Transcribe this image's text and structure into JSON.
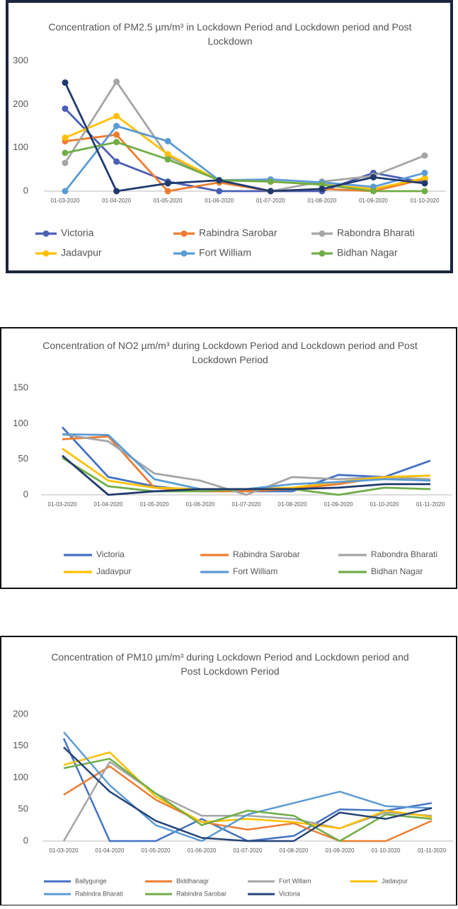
{
  "chart_data": [
    {
      "type": "line",
      "title": "Concentration of PM2.5 µm/m³  in Lockdown Period and Lockdown period and Post Lockdown",
      "categories": [
        "01-03-2020",
        "01-04-2020",
        "01-05-2020",
        "01-06-2020",
        "01-07-2020",
        "01-08-2020",
        "01-09-2020",
        "01-10-2020"
      ],
      "ylim": [
        0,
        300
      ],
      "yticks": [
        0,
        100,
        200,
        300
      ],
      "markers": true,
      "grid": false,
      "series": [
        {
          "name": "Victoria",
          "color": "#4a5fb5",
          "values": [
            190,
            68,
            22,
            0,
            0,
            0,
            42,
            20
          ]
        },
        {
          "name": "Rabindra Sarobar",
          "color": "#ed7d31",
          "values": [
            115,
            130,
            0,
            20,
            0,
            5,
            0,
            28
          ]
        },
        {
          "name": "Rabondra Bharati",
          "color": "#a5a5a5",
          "values": [
            65,
            252,
            80,
            25,
            0,
            22,
            35,
            82
          ]
        },
        {
          "name": "Jadavpur",
          "color": "#ffc000",
          "values": [
            123,
            173,
            85,
            25,
            22,
            15,
            5,
            30
          ]
        },
        {
          "name": "Fort William",
          "color": "#5b9bd5",
          "values": [
            0,
            150,
            115,
            25,
            27,
            20,
            10,
            42
          ]
        },
        {
          "name": "Bidhan Nagar",
          "color": "#70ad47",
          "values": [
            88,
            113,
            73,
            25,
            22,
            15,
            0,
            0
          ]
        },
        {
          "color": "#1f3a6e",
          "values": [
            250,
            0,
            18,
            25,
            0,
            5,
            32,
            18
          ]
        }
      ]
    },
    {
      "type": "line",
      "title": "Concentration of NO2 µm/m³  during Lockdown Period and Lockdown period and Post Lockdown Period",
      "categories": [
        "01-03-2020",
        "01-04-2020",
        "01-05-2020",
        "01-06-2020",
        "01-07-2020",
        "01-08-2020",
        "01-09-2020",
        "01-10-2020",
        "01-11-2020"
      ],
      "ylim": [
        0,
        150
      ],
      "yticks": [
        0,
        50,
        100,
        150
      ],
      "markers": false,
      "grid": false,
      "series": [
        {
          "name": "Victoria",
          "color": "#4472c4",
          "values": [
            95,
            25,
            12,
            5,
            5,
            5,
            28,
            25,
            48
          ]
        },
        {
          "name": "Rabindra Sarobar",
          "color": "#ed7d31",
          "values": [
            78,
            82,
            10,
            5,
            5,
            8,
            15,
            25,
            20
          ]
        },
        {
          "name": "Rabondra Bharati",
          "color": "#a5a5a5",
          "values": [
            85,
            75,
            30,
            20,
            0,
            25,
            22,
            25,
            22
          ]
        },
        {
          "name": "Jadavpur",
          "color": "#ffc000",
          "values": [
            65,
            20,
            10,
            8,
            8,
            10,
            18,
            25,
            27
          ]
        },
        {
          "name": "Fort William",
          "color": "#5b9bd5",
          "values": [
            85,
            84,
            22,
            8,
            8,
            15,
            18,
            22,
            20
          ]
        },
        {
          "name": "Bidhan Nagar",
          "color": "#70ad47",
          "values": [
            52,
            12,
            5,
            5,
            8,
            8,
            0,
            10,
            8
          ]
        },
        {
          "color": "#1f3a6e",
          "values": [
            55,
            0,
            5,
            8,
            8,
            8,
            10,
            15,
            15
          ]
        }
      ]
    },
    {
      "type": "line",
      "title": "Concentration of PM10 µm/m³ during Lockdown Period and Lockdown period and Post Lockdown Period",
      "categories": [
        "01-03-2020",
        "01-04-2020",
        "01-05-2020",
        "01-06-2020",
        "01-07-2020",
        "01-08-2020",
        "01-09-2020",
        "01-10-2020",
        "01-11-2020"
      ],
      "ylim": [
        0,
        200
      ],
      "yticks": [
        0,
        50,
        100,
        150,
        200
      ],
      "markers": false,
      "grid": false,
      "series": [
        {
          "name": "Ballygunge",
          "color": "#4472c4",
          "values": [
            162,
            0,
            0,
            35,
            0,
            8,
            50,
            48,
            60
          ]
        },
        {
          "name": "Biddhanagr",
          "color": "#ed7d31",
          "values": [
            73,
            118,
            65,
            30,
            18,
            28,
            0,
            0,
            32
          ]
        },
        {
          "name": "Fort Willam",
          "color": "#a5a5a5",
          "values": [
            0,
            125,
            75,
            40,
            40,
            35,
            20,
            45,
            40
          ]
        },
        {
          "name": "Jadavpur",
          "color": "#ffc000",
          "values": [
            120,
            140,
            70,
            30,
            35,
            30,
            20,
            48,
            38
          ]
        },
        {
          "name": "Rabindra Bharati",
          "color": "#5b9bd5",
          "values": [
            172,
            88,
            25,
            0,
            42,
            60,
            78,
            55,
            52
          ]
        },
        {
          "name": "Rabindra Sarobar",
          "color": "#70ad47",
          "values": [
            115,
            130,
            75,
            25,
            48,
            40,
            0,
            42,
            35
          ]
        },
        {
          "name": "Victoria",
          "color": "#264478",
          "values": [
            148,
            78,
            32,
            5,
            0,
            0,
            45,
            35,
            52
          ]
        }
      ]
    }
  ]
}
